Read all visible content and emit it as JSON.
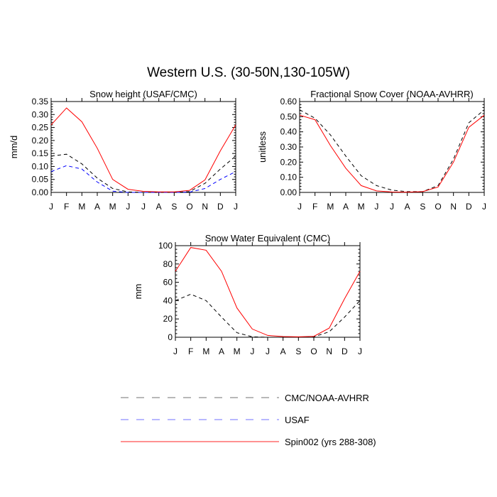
{
  "figure_title": "Western U.S. (30-50N,130-105W)",
  "legend": [
    {
      "label": "CMC/NOAA-AVHRR",
      "color": "#000000",
      "dash": true
    },
    {
      "label": "USAF",
      "color": "#0000ff",
      "dash": true
    },
    {
      "label": "Spin002 (yrs 288-308)",
      "color": "#ff0000",
      "dash": false
    }
  ],
  "chart_data": [
    {
      "type": "line",
      "title": "Snow height (USAF/CMC)",
      "ylabel": "mm/d",
      "xlabel": "",
      "categories": [
        "J",
        "F",
        "M",
        "A",
        "M",
        "J",
        "J",
        "A",
        "S",
        "O",
        "N",
        "D",
        "J"
      ],
      "ylim": [
        0,
        0.35
      ],
      "yticks": [
        "0.00",
        "0.05",
        "0.10",
        "0.15",
        "0.20",
        "0.25",
        "0.30",
        "0.35"
      ],
      "grid": false,
      "series": [
        {
          "name": "CMC/NOAA-AVHRR",
          "color": "#000000",
          "dash": true,
          "values": [
            0.14,
            0.147,
            0.11,
            0.055,
            0.015,
            0.002,
            0.0,
            0.0,
            0.0,
            0.003,
            0.035,
            0.09,
            0.14
          ]
        },
        {
          "name": "USAF",
          "color": "#0000ff",
          "dash": true,
          "values": [
            0.08,
            0.103,
            0.09,
            0.04,
            0.005,
            0.0,
            0.0,
            0.0,
            0.0,
            0.001,
            0.015,
            0.05,
            0.08
          ]
        },
        {
          "name": "Spin002 (yrs 288-308)",
          "color": "#ff0000",
          "dash": false,
          "values": [
            0.26,
            0.325,
            0.272,
            0.17,
            0.05,
            0.012,
            0.004,
            0.002,
            0.002,
            0.008,
            0.048,
            0.16,
            0.26
          ]
        }
      ]
    },
    {
      "type": "line",
      "title": "Fractional Snow Cover (NOAA-AVHRR)",
      "ylabel": "unitless",
      "xlabel": "",
      "categories": [
        "J",
        "F",
        "M",
        "A",
        "M",
        "J",
        "J",
        "A",
        "S",
        "O",
        "N",
        "D",
        "J"
      ],
      "ylim": [
        0,
        0.6
      ],
      "yticks": [
        "0.00",
        "0.10",
        "0.20",
        "0.30",
        "0.40",
        "0.50",
        "0.60"
      ],
      "grid": false,
      "series": [
        {
          "name": "CMC/NOAA-AVHRR",
          "color": "#000000",
          "dash": true,
          "values": [
            0.545,
            0.49,
            0.38,
            0.24,
            0.11,
            0.045,
            0.015,
            0.005,
            0.005,
            0.045,
            0.22,
            0.46,
            0.545
          ]
        },
        {
          "name": "Spin002 (yrs 288-308)",
          "color": "#ff0000",
          "dash": false,
          "values": [
            0.51,
            0.48,
            0.31,
            0.16,
            0.045,
            0.01,
            0.003,
            0.002,
            0.005,
            0.035,
            0.2,
            0.43,
            0.51
          ]
        }
      ]
    },
    {
      "type": "line",
      "title": "Snow Water Equivalent (CMC)",
      "ylabel": "mm",
      "xlabel": "",
      "categories": [
        "J",
        "F",
        "M",
        "A",
        "M",
        "J",
        "J",
        "A",
        "S",
        "O",
        "N",
        "D",
        "J"
      ],
      "ylim": [
        0,
        100
      ],
      "yticks": [
        "0",
        "20",
        "40",
        "60",
        "80",
        "100"
      ],
      "grid": false,
      "series": [
        {
          "name": "CMC/NOAA-AVHRR",
          "color": "#000000",
          "dash": true,
          "values": [
            40,
            47,
            40,
            22,
            5,
            0.5,
            0,
            0,
            0,
            0.5,
            6,
            22,
            40
          ]
        },
        {
          "name": "Spin002 (yrs 288-308)",
          "color": "#ff0000",
          "dash": false,
          "values": [
            72,
            98,
            95,
            72,
            32,
            9,
            2,
            0.8,
            0.5,
            1,
            10,
            42,
            72
          ]
        }
      ]
    }
  ]
}
